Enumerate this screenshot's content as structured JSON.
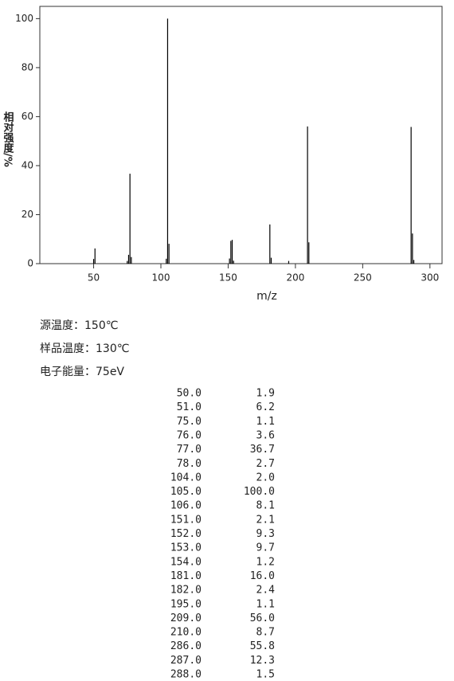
{
  "chart_data": {
    "type": "stem",
    "x_label": "m/z",
    "y_label": "相对强度/%",
    "x": [
      50,
      51,
      75,
      76,
      77,
      78,
      104,
      105,
      106,
      151,
      152,
      153,
      154,
      181,
      182,
      195,
      209,
      210,
      286,
      287,
      288
    ],
    "values": [
      1.9,
      6.2,
      1.1,
      3.6,
      36.7,
      2.7,
      2.0,
      100.0,
      8.1,
      2.1,
      9.3,
      9.7,
      1.2,
      16.0,
      2.4,
      1.1,
      56.0,
      8.7,
      55.8,
      12.3,
      1.5
    ],
    "color": "#000000",
    "xlim": [
      10,
      309
    ],
    "ylim": [
      0,
      105
    ],
    "xticks": [
      50,
      100,
      150,
      200,
      250,
      300
    ],
    "yticks": [
      0,
      20,
      40,
      60,
      80,
      100
    ]
  },
  "conditions": [
    "源温度：150℃",
    "样品温度：130℃",
    "电子能量：75eV"
  ],
  "table": {
    "rows": [
      [
        "50.0",
        "1.9"
      ],
      [
        "51.0",
        "6.2"
      ],
      [
        "75.0",
        "1.1"
      ],
      [
        "76.0",
        "3.6"
      ],
      [
        "77.0",
        "36.7"
      ],
      [
        "78.0",
        "2.7"
      ],
      [
        "104.0",
        "2.0"
      ],
      [
        "105.0",
        "100.0"
      ],
      [
        "106.0",
        "8.1"
      ],
      [
        "151.0",
        "2.1"
      ],
      [
        "152.0",
        "9.3"
      ],
      [
        "153.0",
        "9.7"
      ],
      [
        "154.0",
        "1.2"
      ],
      [
        "181.0",
        "16.0"
      ],
      [
        "182.0",
        "2.4"
      ],
      [
        "195.0",
        "1.1"
      ],
      [
        "209.0",
        "56.0"
      ],
      [
        "210.0",
        "8.7"
      ],
      [
        "286.0",
        "55.8"
      ],
      [
        "287.0",
        "12.3"
      ],
      [
        "288.0",
        "1.5"
      ]
    ]
  }
}
